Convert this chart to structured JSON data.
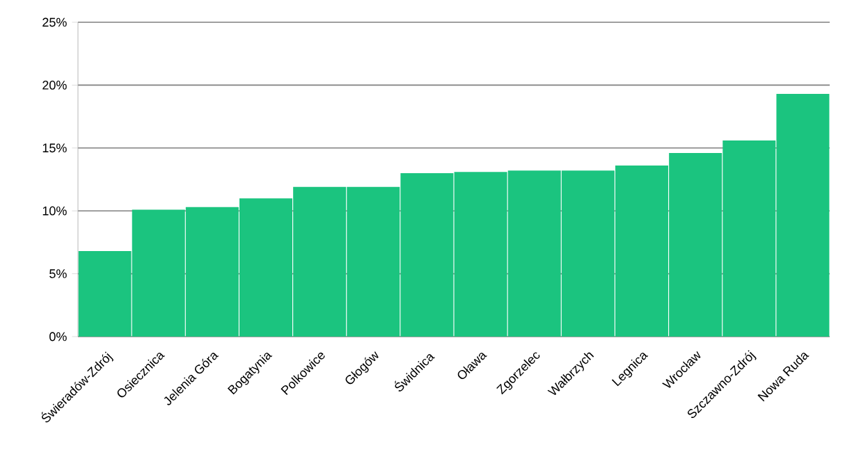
{
  "chart_data": {
    "type": "bar",
    "categories": [
      "Świeradów-Zdrój",
      "Osiecznica",
      "Jelenia Góra",
      "Bogatynia",
      "Polkowice",
      "Głogów",
      "Świdnica",
      "Oława",
      "Zgorzelec",
      "Wałbrzych",
      "Legnica",
      "Wrocław",
      "Szczawno-Zdrój",
      "Nowa Ruda"
    ],
    "values": [
      6.8,
      10.1,
      10.3,
      11.0,
      11.9,
      11.9,
      13.0,
      13.1,
      13.2,
      13.2,
      13.6,
      14.6,
      15.6,
      19.3
    ],
    "color": "#1bc47f",
    "ylim": [
      0,
      25
    ],
    "yticks": [
      {
        "value": 0,
        "label": "0%"
      },
      {
        "value": 5,
        "label": "5%"
      },
      {
        "value": 10,
        "label": "10%"
      },
      {
        "value": 15,
        "label": "15%"
      },
      {
        "value": 20,
        "label": "20%"
      },
      {
        "value": 25,
        "label": "25%"
      }
    ],
    "grid": "y"
  }
}
